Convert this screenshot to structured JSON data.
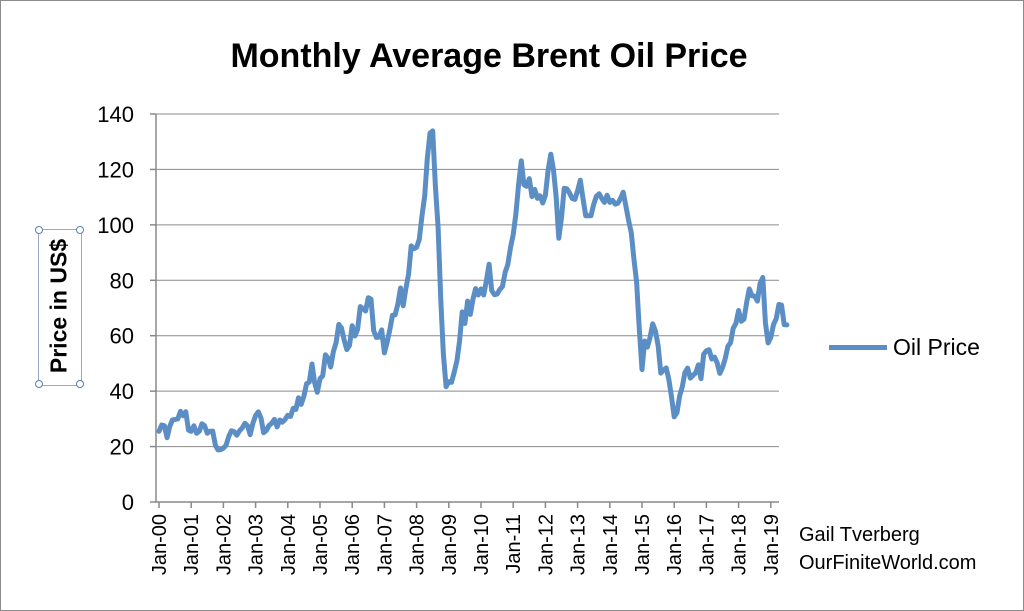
{
  "chart_data": {
    "type": "line",
    "title": "Monthly Average Brent Oil Price",
    "ylabel": "Price in US$",
    "xlabel": "",
    "ylim": [
      0,
      140
    ],
    "yticks": [
      "0",
      "20",
      "40",
      "60",
      "80",
      "100",
      "120",
      "140"
    ],
    "xticks": [
      "Jan-00",
      "Jan-01",
      "Jan-02",
      "Jan-03",
      "Jan-04",
      "Jan-05",
      "Jan-06",
      "Jan-07",
      "Jan-08",
      "Jan-09",
      "Jan-10",
      "Jan-11",
      "Jan-12",
      "Jan-13",
      "Jan-14",
      "Jan-15",
      "Jan-16",
      "Jan-17",
      "Jan-18",
      "Jan-19"
    ],
    "grid": true,
    "legend_position": "right",
    "series": [
      {
        "name": "Oil Price",
        "color": "#5b8ec5",
        "start": "Jan-00",
        "values": [
          25.5,
          27.8,
          27.5,
          23.2,
          27.2,
          29.6,
          29.8,
          30.0,
          32.7,
          31.1,
          32.6,
          25.9,
          25.5,
          27.5,
          24.8,
          25.5,
          28.2,
          27.5,
          24.8,
          25.5,
          25.6,
          20.5,
          18.8,
          18.9,
          19.4,
          20.5,
          23.7,
          25.7,
          25.4,
          24.1,
          25.7,
          26.7,
          28.4,
          27.5,
          24.3,
          28.4,
          31.2,
          32.5,
          30.3,
          25.0,
          25.8,
          27.6,
          28.4,
          29.8,
          27.1,
          29.6,
          28.8,
          29.8,
          31.3,
          30.9,
          33.8,
          33.4,
          37.6,
          35.2,
          38.2,
          42.7,
          43.3,
          49.8,
          43.1,
          39.6,
          44.5,
          45.5,
          53.1,
          51.9,
          48.7,
          54.3,
          57.5,
          64.1,
          62.8,
          58.5,
          55.0,
          56.5,
          63.6,
          59.9,
          62.3,
          70.5,
          69.8,
          68.9,
          73.7,
          73.2,
          61.8,
          59.4,
          59.5,
          62.1,
          53.8,
          57.6,
          62.1,
          67.4,
          67.5,
          71.3,
          77.2,
          70.8,
          77.1,
          82.3,
          92.4,
          91.4,
          91.9,
          94.8,
          103.3,
          110.4,
          123.9,
          133.1,
          133.9,
          113.9,
          99.1,
          72.8,
          53.2,
          41.6,
          43.4,
          43.2,
          46.8,
          50.9,
          57.9,
          68.6,
          64.4,
          72.5,
          67.7,
          73.2,
          77.0,
          74.7,
          76.9,
          74.7,
          79.9,
          85.8,
          76.3,
          74.8,
          75.0,
          76.7,
          77.8,
          82.9,
          85.7,
          91.8,
          96.5,
          104.0,
          114.6,
          123.1,
          114.5,
          113.9,
          116.7,
          110.2,
          112.8,
          109.6,
          110.5,
          107.9,
          110.7,
          119.7,
          125.5,
          119.8,
          110.3,
          95.2,
          102.6,
          113.2,
          113.0,
          111.5,
          109.5,
          109.2,
          112.3,
          116.1,
          109.5,
          103.3,
          103.3,
          103.3,
          107.4,
          110.3,
          111.2,
          109.5,
          108.1,
          110.7,
          108.1,
          108.9,
          107.5,
          107.8,
          109.5,
          111.8,
          106.8,
          101.6,
          97.1,
          87.4,
          79.4,
          62.3,
          47.8,
          58.1,
          55.9,
          59.5,
          64.3,
          61.7,
          56.5,
          46.5,
          47.6,
          48.4,
          44.3,
          38.0,
          30.7,
          32.2,
          38.2,
          41.6,
          46.7,
          48.3,
          44.7,
          45.7,
          46.6,
          49.5,
          44.5,
          53.3,
          54.6,
          54.9,
          51.6,
          52.3,
          50.3,
          46.4,
          48.5,
          51.7,
          56.2,
          57.5,
          62.7,
          64.4,
          69.1,
          65.2,
          66.0,
          72.1,
          76.9,
          74.4,
          74.3,
          72.5,
          78.9,
          81.0,
          64.8,
          57.4,
          59.4,
          64.0,
          66.1,
          71.3,
          71.1,
          64.0,
          63.9
        ]
      }
    ]
  },
  "credit": {
    "line1": "Gail Tverberg",
    "line2": "OurFiniteWorld.com"
  }
}
